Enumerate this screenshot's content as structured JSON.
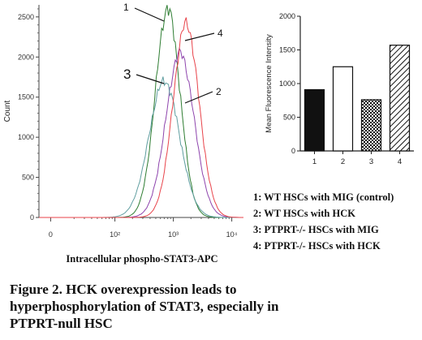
{
  "chart_data": [
    {
      "type": "area",
      "xlabel": "Intracellular phospho-STAT3-APC",
      "ylabel": "Count",
      "x_scale": "log",
      "x_tick_labels": [
        "0",
        "10²",
        "10³",
        "10⁴"
      ],
      "x_tick_values": [
        0,
        100,
        1000,
        10000
      ],
      "y_tick_labels": [
        "0",
        "500",
        "1000",
        "1500",
        "2000",
        "2500"
      ],
      "ylim": [
        0,
        2650
      ],
      "series_annotations": [
        "1",
        "4",
        "3",
        "2"
      ],
      "series": [
        {
          "name": "1",
          "color": "#2e7d32",
          "peak_x": 800,
          "peak_count": 2600,
          "spread": 0.21
        },
        {
          "name": "2",
          "color": "#8e44ad",
          "peak_x": 1300,
          "peak_count": 2050,
          "spread": 0.24
        },
        {
          "name": "3",
          "color": "#5f9ea0",
          "peak_x": 700,
          "peak_count": 1700,
          "spread": 0.26
        },
        {
          "name": "4",
          "color": "#e8434a",
          "peak_x": 1650,
          "peak_count": 2420,
          "spread": 0.22
        }
      ]
    },
    {
      "type": "bar",
      "ylabel": "Mean Fluorescence Intensity",
      "categories": [
        "1",
        "2",
        "3",
        "4"
      ],
      "values": [
        910,
        1250,
        760,
        1570
      ],
      "fills": [
        "solid",
        "white",
        "checker",
        "hatch"
      ],
      "ylim": [
        0,
        2000
      ],
      "y_tick_labels": [
        "0",
        "500",
        "1000",
        "1500",
        "2000"
      ]
    }
  ],
  "legend": [
    "1: WT HSCs with MIG (control)",
    "2: WT HSCs with HCK",
    "3: PTPRT-/- HSCs with MIG",
    "4: PTPRT-/- HSCs with HCK"
  ],
  "caption": {
    "lines": [
      "Figure 2. HCK overexpression leads to",
      "hyperphosphorylation of STAT3, especially in",
      "PTPRT-null HSC"
    ]
  }
}
